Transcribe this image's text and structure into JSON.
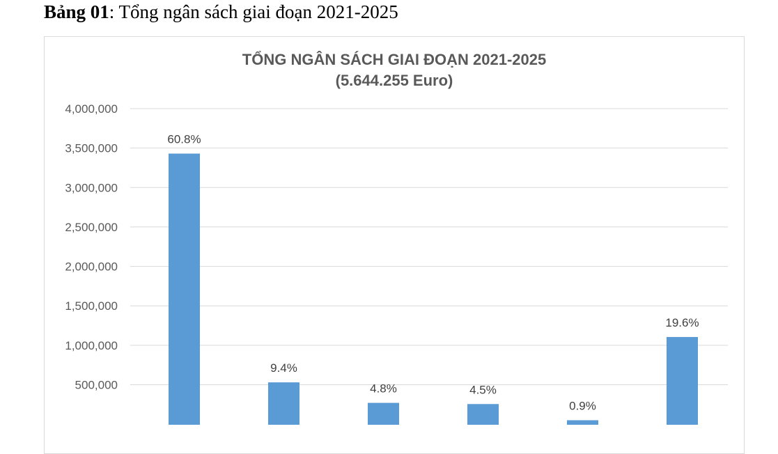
{
  "caption": {
    "label": "Bảng 01",
    "text": ": Tổng ngân sách giai đoạn 2021-2025"
  },
  "chart_data": {
    "type": "bar",
    "title": "TỔNG NGÂN SÁCH GIAI ĐOẠN 2021-2025",
    "subtitle": "(5.644.255 Euro)",
    "xlabel": "",
    "ylabel": "",
    "ylim": [
      0,
      4000000
    ],
    "yticks": [
      500000,
      1000000,
      1500000,
      2000000,
      2500000,
      3000000,
      3500000,
      4000000
    ],
    "ytick_labels": [
      "500,000",
      "1,000,000",
      "1,500,000",
      "2,000,000",
      "2,500,000",
      "3,000,000",
      "3,500,000",
      "4,000,000"
    ],
    "grid": true,
    "legend": "none",
    "bar_color": "#5b9bd5",
    "grid_color": "#d9d9d9",
    "values": [
      3430000,
      530000,
      270000,
      255000,
      50000,
      1105000
    ],
    "data_labels": [
      "60.8%",
      "9.4%",
      "4.8%",
      "4.5%",
      "0.9%",
      "19.6%"
    ]
  }
}
